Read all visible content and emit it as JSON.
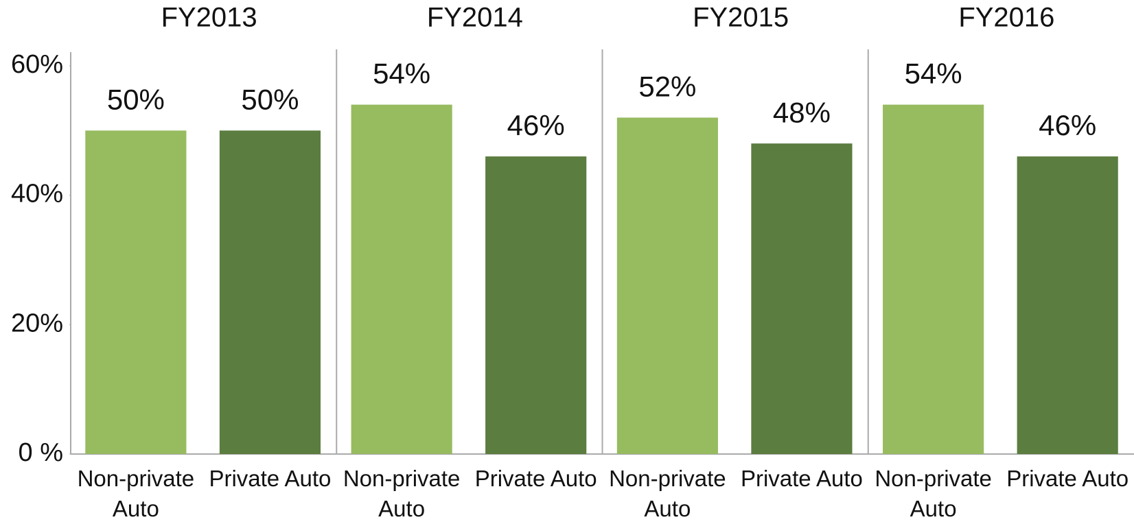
{
  "chart_data": {
    "type": "bar",
    "colors": [
      "#97bb5f",
      "#5b7d3f"
    ],
    "ylim": [
      0,
      60
    ],
    "yticks": [
      {
        "value": 0,
        "label": "0 %"
      },
      {
        "value": 20,
        "label": "20%"
      },
      {
        "value": 40,
        "label": "40%"
      },
      {
        "value": 60,
        "label": "60%"
      }
    ],
    "panels": [
      {
        "title": "FY2013",
        "categories": [
          "Non-private Auto",
          "Private Auto"
        ],
        "values": [
          50,
          50
        ],
        "value_labels": [
          "50%",
          "50%"
        ]
      },
      {
        "title": "FY2014",
        "categories": [
          "Non-private Auto",
          "Private Auto"
        ],
        "values": [
          54,
          46
        ],
        "value_labels": [
          "54%",
          "46%"
        ]
      },
      {
        "title": "FY2015",
        "categories": [
          "Non-private Auto",
          "Private Auto"
        ],
        "values": [
          52,
          48
        ],
        "value_labels": [
          "52%",
          "48%"
        ]
      },
      {
        "title": "FY2016",
        "categories": [
          "Non-private Auto",
          "Private Auto"
        ],
        "values": [
          54,
          46
        ],
        "value_labels": [
          "54%",
          "46%"
        ]
      }
    ]
  }
}
